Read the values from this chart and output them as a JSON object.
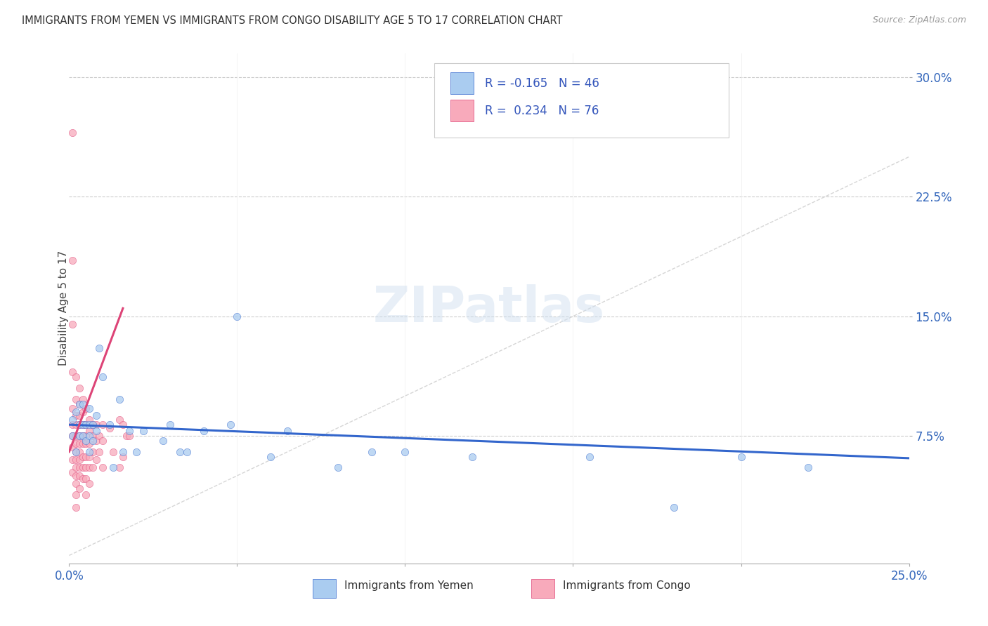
{
  "title": "IMMIGRANTS FROM YEMEN VS IMMIGRANTS FROM CONGO DISABILITY AGE 5 TO 17 CORRELATION CHART",
  "source": "Source: ZipAtlas.com",
  "ylabel": "Disability Age 5 to 17",
  "yticks": [
    "7.5%",
    "15.0%",
    "22.5%",
    "30.0%"
  ],
  "ytick_vals": [
    0.075,
    0.15,
    0.225,
    0.3
  ],
  "xlim": [
    0.0,
    0.25
  ],
  "ylim": [
    -0.005,
    0.315
  ],
  "color_yemen": "#aaccf0",
  "color_congo": "#f8aabb",
  "color_trend_yemen": "#3366cc",
  "color_trend_congo": "#dd4477",
  "color_diagonal": "#cccccc",
  "background_color": "#ffffff",
  "watermark": "ZIPatlas",
  "legend_text_color": "#3355bb",
  "legend_label_color": "#333333",
  "yemen_trend_x0": 0.0,
  "yemen_trend_y0": 0.082,
  "yemen_trend_x1": 0.25,
  "yemen_trend_y1": 0.061,
  "congo_trend_x0": 0.0,
  "congo_trend_y0": 0.065,
  "congo_trend_x1": 0.016,
  "congo_trend_y1": 0.155,
  "yemen_x": [
    0.001,
    0.001,
    0.002,
    0.002,
    0.003,
    0.003,
    0.003,
    0.004,
    0.004,
    0.004,
    0.005,
    0.005,
    0.006,
    0.006,
    0.006,
    0.006,
    0.007,
    0.007,
    0.008,
    0.008,
    0.009,
    0.01,
    0.012,
    0.013,
    0.015,
    0.016,
    0.018,
    0.02,
    0.022,
    0.028,
    0.03,
    0.033,
    0.035,
    0.04,
    0.048,
    0.05,
    0.06,
    0.065,
    0.08,
    0.09,
    0.1,
    0.12,
    0.155,
    0.18,
    0.2,
    0.22
  ],
  "yemen_y": [
    0.075,
    0.085,
    0.065,
    0.09,
    0.075,
    0.082,
    0.095,
    0.075,
    0.082,
    0.095,
    0.072,
    0.082,
    0.065,
    0.075,
    0.082,
    0.092,
    0.072,
    0.082,
    0.078,
    0.088,
    0.13,
    0.112,
    0.082,
    0.055,
    0.098,
    0.065,
    0.078,
    0.065,
    0.078,
    0.072,
    0.082,
    0.065,
    0.065,
    0.078,
    0.082,
    0.15,
    0.062,
    0.078,
    0.055,
    0.065,
    0.065,
    0.062,
    0.062,
    0.03,
    0.062,
    0.055
  ],
  "congo_x": [
    0.001,
    0.001,
    0.001,
    0.001,
    0.001,
    0.001,
    0.001,
    0.001,
    0.001,
    0.001,
    0.002,
    0.002,
    0.002,
    0.002,
    0.002,
    0.002,
    0.002,
    0.002,
    0.002,
    0.002,
    0.002,
    0.002,
    0.002,
    0.003,
    0.003,
    0.003,
    0.003,
    0.003,
    0.003,
    0.003,
    0.003,
    0.003,
    0.003,
    0.003,
    0.004,
    0.004,
    0.004,
    0.004,
    0.004,
    0.004,
    0.004,
    0.004,
    0.005,
    0.005,
    0.005,
    0.005,
    0.005,
    0.005,
    0.005,
    0.005,
    0.006,
    0.006,
    0.006,
    0.006,
    0.006,
    0.006,
    0.007,
    0.007,
    0.007,
    0.007,
    0.008,
    0.008,
    0.008,
    0.009,
    0.009,
    0.01,
    0.01,
    0.01,
    0.012,
    0.013,
    0.015,
    0.015,
    0.016,
    0.016,
    0.017,
    0.018
  ],
  "congo_y": [
    0.265,
    0.185,
    0.145,
    0.115,
    0.092,
    0.082,
    0.075,
    0.068,
    0.06,
    0.052,
    0.112,
    0.098,
    0.088,
    0.082,
    0.075,
    0.07,
    0.065,
    0.06,
    0.055,
    0.05,
    0.045,
    0.038,
    0.03,
    0.105,
    0.095,
    0.088,
    0.082,
    0.075,
    0.07,
    0.065,
    0.06,
    0.055,
    0.05,
    0.042,
    0.098,
    0.09,
    0.082,
    0.075,
    0.07,
    0.062,
    0.055,
    0.048,
    0.092,
    0.082,
    0.075,
    0.07,
    0.062,
    0.055,
    0.048,
    0.038,
    0.085,
    0.078,
    0.07,
    0.062,
    0.055,
    0.045,
    0.082,
    0.075,
    0.065,
    0.055,
    0.082,
    0.072,
    0.06,
    0.075,
    0.065,
    0.082,
    0.072,
    0.055,
    0.08,
    0.065,
    0.085,
    0.055,
    0.082,
    0.062,
    0.075,
    0.075
  ]
}
